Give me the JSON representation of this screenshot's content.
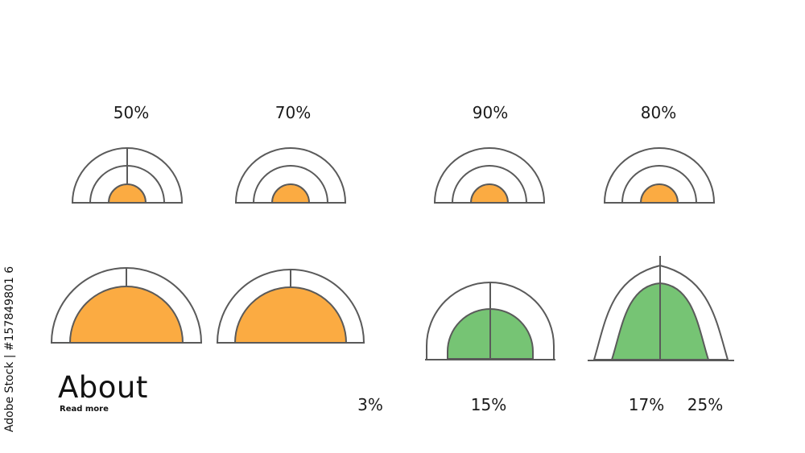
{
  "gauges_top": [
    {
      "label": "50%"
    },
    {
      "label": "70%"
    },
    {
      "label": "90%"
    },
    {
      "label": "80%"
    }
  ],
  "gauges_bottom": [
    {
      "label": "3%"
    },
    {
      "label": "15%"
    },
    {
      "label": "17%"
    },
    {
      "label": "25%"
    }
  ],
  "about": {
    "title": "About",
    "subtitle": "Read more"
  },
  "watermark": {
    "side_text": "Adobe Stock | #157849801 6"
  },
  "colors": {
    "orange": "#fbab42",
    "green": "#76c474",
    "stroke": "#5a5a5a"
  }
}
